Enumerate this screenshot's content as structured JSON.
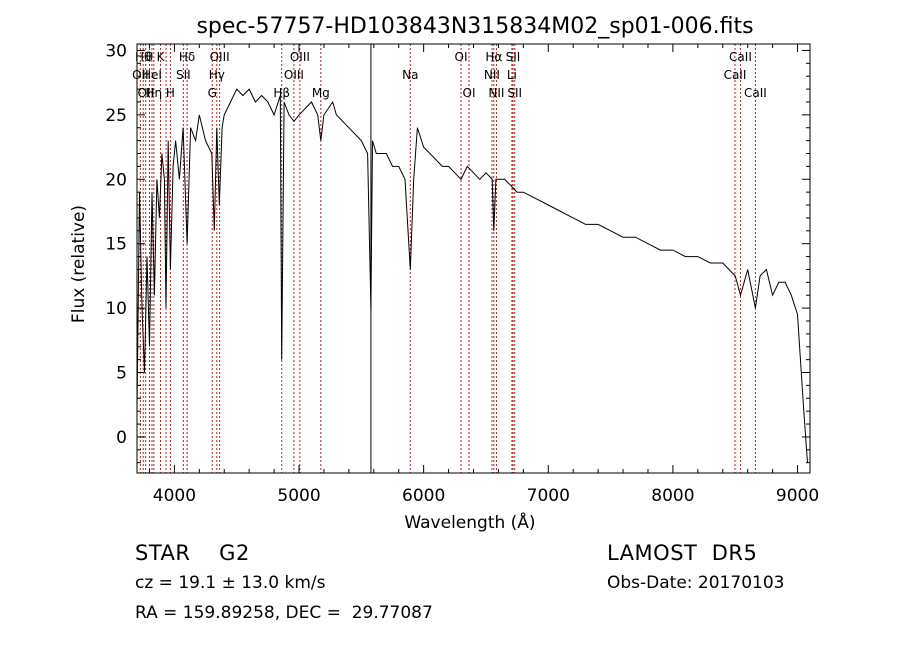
{
  "chart_data": {
    "type": "line",
    "title": "spec-57757-HD103843N315834M02_sp01-006.fits",
    "xlabel": "Wavelength (Å)",
    "ylabel": "Flux (relative)",
    "xlim": [
      3700,
      9100
    ],
    "ylim": [
      -2.8,
      30.5
    ],
    "xticks": [
      4000,
      5000,
      6000,
      7000,
      8000,
      9000
    ],
    "yticks": [
      0,
      5,
      10,
      15,
      20,
      25,
      30
    ],
    "grid": false,
    "series": [
      {
        "x": [
          3700,
          3720,
          3740,
          3760,
          3780,
          3800,
          3820,
          3840,
          3860,
          3880,
          3900,
          3920,
          3933,
          3950,
          3968,
          3990,
          4010,
          4040,
          4070,
          4102,
          4130,
          4170,
          4200,
          4250,
          4300,
          4320,
          4340,
          4360,
          4383,
          4400,
          4450,
          4500,
          4550,
          4600,
          4650,
          4700,
          4750,
          4800,
          4850,
          4861,
          4880,
          4920,
          4960,
          5000,
          5050,
          5100,
          5150,
          5175,
          5200,
          5270,
          5300,
          5350,
          5400,
          5450,
          5500,
          5550,
          5577,
          5590,
          5620,
          5700,
          5750,
          5800,
          5850,
          5893,
          5920,
          5950,
          6000,
          6050,
          6100,
          6150,
          6200,
          6250,
          6300,
          6350,
          6400,
          6450,
          6500,
          6550,
          6563,
          6580,
          6650,
          6700,
          6750,
          6800,
          6900,
          7000,
          7100,
          7200,
          7300,
          7400,
          7500,
          7600,
          7700,
          7800,
          7900,
          8000,
          8100,
          8200,
          8300,
          8400,
          8450,
          8500,
          8542,
          8600,
          8662,
          8700,
          8750,
          8800,
          8850,
          8900,
          8950,
          9000,
          9050,
          9080
        ],
        "y": [
          2,
          19,
          10,
          5,
          14,
          7,
          19,
          11,
          20,
          17,
          22,
          20,
          10,
          23,
          13,
          21,
          23,
          20,
          24,
          15,
          24,
          23,
          25,
          23,
          22,
          16,
          24,
          18,
          24,
          25,
          26,
          27,
          26.5,
          27,
          26,
          26.5,
          26,
          25,
          26.5,
          6,
          26,
          25,
          24.5,
          25,
          25.5,
          26,
          25,
          23,
          25,
          26,
          25,
          24.5,
          24,
          23.5,
          23,
          22,
          10,
          23,
          22,
          22,
          21,
          21,
          20,
          13,
          20,
          24,
          22.5,
          22,
          21.5,
          21,
          21,
          20.5,
          20,
          21,
          20.5,
          20,
          20.5,
          20,
          16,
          20,
          20,
          19.5,
          19,
          19,
          18.5,
          18,
          17.5,
          17,
          16.5,
          16.5,
          16,
          15.5,
          15.5,
          15,
          14.5,
          14.5,
          14,
          14,
          13.5,
          13.5,
          13,
          12.5,
          11,
          13,
          10,
          12.5,
          13,
          11,
          12,
          12,
          11,
          9.5,
          2,
          -2
        ]
      }
    ],
    "lines": [
      {
        "wl": 3727,
        "row": 1,
        "text": "OII"
      },
      {
        "wl": 3750,
        "row": 0,
        "text": "Hθ"
      },
      {
        "wl": 3770,
        "row": 2,
        "text": "OII"
      },
      {
        "wl": 3800,
        "row": 0,
        "text": "θ"
      },
      {
        "wl": 3820,
        "row": 1,
        "text": "HeI"
      },
      {
        "wl": 3835,
        "row": 2,
        "text": "Hη"
      },
      {
        "wl": 3889,
        "row": 0,
        "text": "K"
      },
      {
        "wl": 3933,
        "row": 1,
        "text": ""
      },
      {
        "wl": 3968,
        "row": 2,
        "text": "H"
      },
      {
        "wl": 4072,
        "row": 1,
        "text": "SII"
      },
      {
        "wl": 4102,
        "row": 0,
        "text": "Hδ"
      },
      {
        "wl": 4304,
        "row": 2,
        "text": "G"
      },
      {
        "wl": 4340,
        "row": 1,
        "text": "Hγ"
      },
      {
        "wl": 4363,
        "row": 0,
        "text": "OIII"
      },
      {
        "wl": 4861,
        "row": 2,
        "text": "Hβ"
      },
      {
        "wl": 4959,
        "row": 1,
        "text": "OIII"
      },
      {
        "wl": 5007,
        "row": 0,
        "text": "OIII"
      },
      {
        "wl": 5175,
        "row": 2,
        "text": "Mg"
      },
      {
        "wl": 5893,
        "row": 1,
        "text": "Na"
      },
      {
        "wl": 6300,
        "row": 0,
        "text": "OI"
      },
      {
        "wl": 6364,
        "row": 2,
        "text": "OI"
      },
      {
        "wl": 6548,
        "row": 1,
        "text": "NII"
      },
      {
        "wl": 6563,
        "row": 0,
        "text": "Hα"
      },
      {
        "wl": 6584,
        "row": 2,
        "text": "NII"
      },
      {
        "wl": 6708,
        "row": 1,
        "text": "Li"
      },
      {
        "wl": 6717,
        "row": 0,
        "text": "SII"
      },
      {
        "wl": 6731,
        "row": 2,
        "text": "SII"
      },
      {
        "wl": 8498,
        "row": 1,
        "text": "CaII"
      },
      {
        "wl": 8542,
        "row": 0,
        "text": "CaII"
      },
      {
        "wl": 8662,
        "row": 2,
        "text": "CaII"
      }
    ],
    "solid_line_wl": 5577
  },
  "info": {
    "class_line": "STAR    G2",
    "survey": "LAMOST  DR5",
    "cz": "cz = 19.1 ± 13.0 km/s",
    "obs_date": "Obs-Date: 20170103",
    "coords": "RA = 159.89258, DEC =  29.77087"
  }
}
